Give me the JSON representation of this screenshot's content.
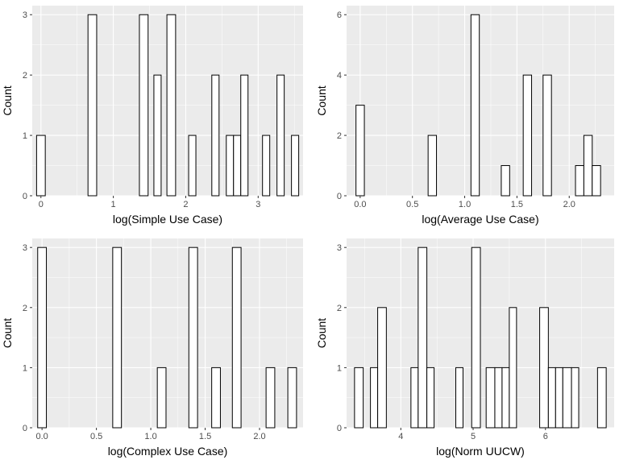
{
  "chart_data": [
    {
      "type": "bar",
      "histogram": true,
      "xlabel": "log(Simple Use Case)",
      "ylabel": "Count",
      "xlim": [
        -0.12,
        3.62
      ],
      "ylim": [
        0,
        3.15
      ],
      "xticks": [
        0,
        1,
        2,
        3
      ],
      "xtick_labels": [
        "0",
        "1",
        "2",
        "3"
      ],
      "yticks": [
        0,
        1,
        2,
        3
      ],
      "ytick_labels": [
        "0",
        "1",
        "2",
        "3"
      ],
      "grid": true,
      "bins": [
        {
          "x0": -0.06,
          "x1": 0.06,
          "count": 1
        },
        {
          "x0": 0.65,
          "x1": 0.77,
          "count": 3
        },
        {
          "x0": 1.36,
          "x1": 1.48,
          "count": 3
        },
        {
          "x0": 1.56,
          "x1": 1.66,
          "count": 2
        },
        {
          "x0": 1.74,
          "x1": 1.86,
          "count": 3
        },
        {
          "x0": 2.04,
          "x1": 2.14,
          "count": 1
        },
        {
          "x0": 2.36,
          "x1": 2.46,
          "count": 2
        },
        {
          "x0": 2.56,
          "x1": 2.66,
          "count": 1
        },
        {
          "x0": 2.66,
          "x1": 2.76,
          "count": 1
        },
        {
          "x0": 2.76,
          "x1": 2.86,
          "count": 2
        },
        {
          "x0": 3.06,
          "x1": 3.16,
          "count": 1
        },
        {
          "x0": 3.26,
          "x1": 3.36,
          "count": 2
        },
        {
          "x0": 3.46,
          "x1": 3.56,
          "count": 1
        }
      ]
    },
    {
      "type": "bar",
      "histogram": true,
      "xlabel": "log(Average Use Case)",
      "ylabel": "Count",
      "xlim": [
        -0.13,
        2.43
      ],
      "ylim": [
        0,
        6.3
      ],
      "xticks": [
        0,
        0.5,
        1,
        1.5,
        2
      ],
      "xtick_labels": [
        "0.0",
        "0.5",
        "1.0",
        "1.5",
        "2.0"
      ],
      "yticks": [
        0,
        2,
        4,
        6
      ],
      "ytick_labels": [
        "0",
        "2",
        "4",
        "6"
      ],
      "grid": true,
      "bins": [
        {
          "x0": -0.04,
          "x1": 0.04,
          "count": 3
        },
        {
          "x0": 0.65,
          "x1": 0.73,
          "count": 2
        },
        {
          "x0": 1.06,
          "x1": 1.14,
          "count": 6
        },
        {
          "x0": 1.35,
          "x1": 1.43,
          "count": 1
        },
        {
          "x0": 1.56,
          "x1": 1.64,
          "count": 4
        },
        {
          "x0": 1.75,
          "x1": 1.83,
          "count": 4
        },
        {
          "x0": 2.06,
          "x1": 2.14,
          "count": 1
        },
        {
          "x0": 2.14,
          "x1": 2.22,
          "count": 2
        },
        {
          "x0": 2.22,
          "x1": 2.3,
          "count": 1
        }
      ]
    },
    {
      "type": "bar",
      "histogram": true,
      "xlabel": "log(Complex Use Case)",
      "ylabel": "Count",
      "xlim": [
        -0.09,
        2.4
      ],
      "ylim": [
        0,
        3.15
      ],
      "xticks": [
        0,
        0.5,
        1,
        1.5,
        2
      ],
      "xtick_labels": [
        "0.0",
        "0.5",
        "1.0",
        "1.5",
        "2.0"
      ],
      "yticks": [
        0,
        1,
        2,
        3
      ],
      "ytick_labels": [
        "0",
        "1",
        "2",
        "3"
      ],
      "grid": true,
      "bins": [
        {
          "x0": -0.04,
          "x1": 0.04,
          "count": 3
        },
        {
          "x0": 0.65,
          "x1": 0.73,
          "count": 3
        },
        {
          "x0": 1.06,
          "x1": 1.14,
          "count": 1
        },
        {
          "x0": 1.35,
          "x1": 1.43,
          "count": 3
        },
        {
          "x0": 1.56,
          "x1": 1.64,
          "count": 1
        },
        {
          "x0": 1.75,
          "x1": 1.83,
          "count": 3
        },
        {
          "x0": 2.06,
          "x1": 2.14,
          "count": 1
        },
        {
          "x0": 2.26,
          "x1": 2.34,
          "count": 1
        }
      ]
    },
    {
      "type": "bar",
      "histogram": true,
      "xlabel": "log(Norm UUCW)",
      "ylabel": "Count",
      "xlim": [
        3.25,
        6.95
      ],
      "ylim": [
        0,
        3.15
      ],
      "xticks": [
        4,
        5,
        6
      ],
      "xtick_labels": [
        "4",
        "5",
        "6"
      ],
      "yticks": [
        0,
        1,
        2,
        3
      ],
      "ytick_labels": [
        "0",
        "1",
        "2",
        "3"
      ],
      "grid": true,
      "bins": [
        {
          "x0": 3.36,
          "x1": 3.48,
          "count": 1
        },
        {
          "x0": 3.58,
          "x1": 3.68,
          "count": 1
        },
        {
          "x0": 3.68,
          "x1": 3.8,
          "count": 2
        },
        {
          "x0": 4.14,
          "x1": 4.24,
          "count": 1
        },
        {
          "x0": 4.24,
          "x1": 4.36,
          "count": 3
        },
        {
          "x0": 4.36,
          "x1": 4.46,
          "count": 1
        },
        {
          "x0": 4.76,
          "x1": 4.86,
          "count": 1
        },
        {
          "x0": 4.98,
          "x1": 5.1,
          "count": 3
        },
        {
          "x0": 5.18,
          "x1": 5.3,
          "count": 1
        },
        {
          "x0": 5.3,
          "x1": 5.4,
          "count": 1
        },
        {
          "x0": 5.4,
          "x1": 5.5,
          "count": 1
        },
        {
          "x0": 5.5,
          "x1": 5.6,
          "count": 2
        },
        {
          "x0": 5.92,
          "x1": 6.04,
          "count": 2
        },
        {
          "x0": 6.04,
          "x1": 6.14,
          "count": 1
        },
        {
          "x0": 6.14,
          "x1": 6.24,
          "count": 1
        },
        {
          "x0": 6.24,
          "x1": 6.36,
          "count": 1
        },
        {
          "x0": 6.36,
          "x1": 6.46,
          "count": 1
        },
        {
          "x0": 6.72,
          "x1": 6.84,
          "count": 1
        }
      ]
    }
  ],
  "colors": {
    "panel_background": "#ebebeb",
    "grid_major": "#ffffff",
    "bar_fill": "#ffffff",
    "bar_stroke": "#000000",
    "tick_label": "#4d4d4d",
    "tick_mark": "#333333",
    "axis_title": "#000000"
  }
}
